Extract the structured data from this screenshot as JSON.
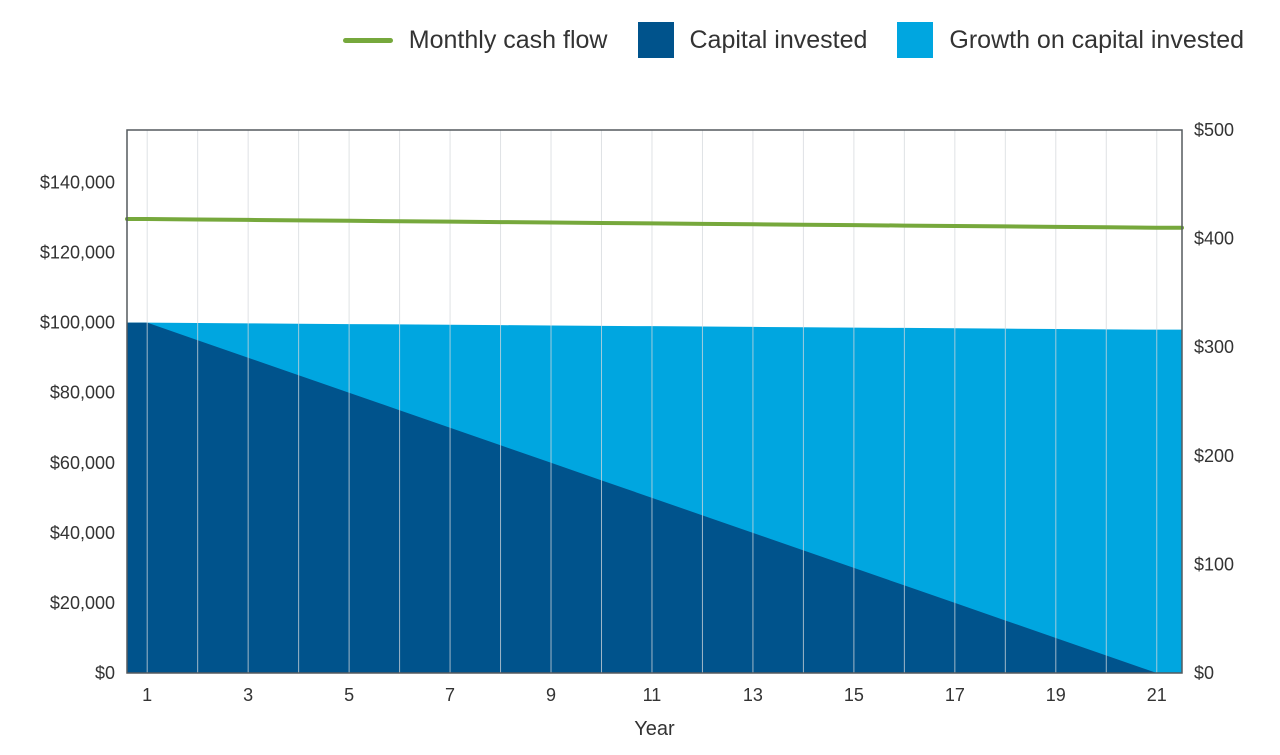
{
  "chart_data": {
    "type": "area",
    "xlabel": "Year",
    "ylabel": "",
    "y2label": "",
    "x": [
      1,
      2,
      3,
      4,
      5,
      6,
      7,
      8,
      9,
      10,
      11,
      12,
      13,
      14,
      15,
      16,
      17,
      18,
      19,
      20,
      21
    ],
    "x_tick_labels": [
      "1",
      "3",
      "5",
      "7",
      "9",
      "11",
      "13",
      "15",
      "17",
      "19",
      "21"
    ],
    "x_tick_values": [
      1,
      3,
      5,
      7,
      9,
      11,
      13,
      15,
      17,
      19,
      21
    ],
    "xlim": [
      0.6,
      21.5
    ],
    "ylim": [
      0,
      155000
    ],
    "y_ticks": [
      0,
      20000,
      40000,
      60000,
      80000,
      100000,
      120000,
      140000
    ],
    "y_tick_labels": [
      "$0",
      "$20,000",
      "$40,000",
      "$60,000",
      "$80,000",
      "$100,000",
      "$120,000",
      "$140,000"
    ],
    "y2lim": [
      0,
      500
    ],
    "y2_ticks": [
      0,
      100,
      200,
      300,
      400,
      500
    ],
    "y2_tick_labels": [
      "$0",
      "$100",
      "$200",
      "$300",
      "$400",
      "$500"
    ],
    "grid": {
      "vertical": true,
      "horizontal": false
    },
    "legend_position": "top-right",
    "series": [
      {
        "name": "Capital invested",
        "kind": "area",
        "axis": "left",
        "color": "#00538c",
        "values": [
          100000,
          95000,
          90000,
          85000,
          80000,
          75000,
          70000,
          65000,
          60000,
          55000,
          50000,
          45000,
          40000,
          35000,
          30000,
          25000,
          20000,
          15000,
          10000,
          5000,
          0
        ]
      },
      {
        "name": "Growth on capital invested",
        "kind": "area",
        "axis": "left",
        "stacked_on": "Capital invested",
        "color": "#00a6e0",
        "total_values": [
          100000,
          99900,
          99800,
          99700,
          99600,
          99500,
          99400,
          99300,
          99200,
          99100,
          99000,
          98900,
          98800,
          98700,
          98600,
          98500,
          98400,
          98300,
          98200,
          98100,
          98000
        ]
      },
      {
        "name": "Monthly cash flow",
        "kind": "line",
        "axis": "right",
        "color": "#76a83c",
        "values": [
          418,
          417.6,
          417.2,
          416.8,
          416.4,
          416,
          415.6,
          415.2,
          414.8,
          414.4,
          414,
          413.6,
          413.2,
          412.8,
          412.4,
          412,
          411.6,
          411.2,
          410.8,
          410.4,
          410
        ]
      }
    ]
  },
  "legend": {
    "items": [
      {
        "label": "Monthly cash flow",
        "kind": "line",
        "color": "#76a83c"
      },
      {
        "label": "Capital invested",
        "kind": "box",
        "color": "#00538c"
      },
      {
        "label": "Growth on capital invested",
        "kind": "box",
        "color": "#00a6e0"
      }
    ]
  }
}
